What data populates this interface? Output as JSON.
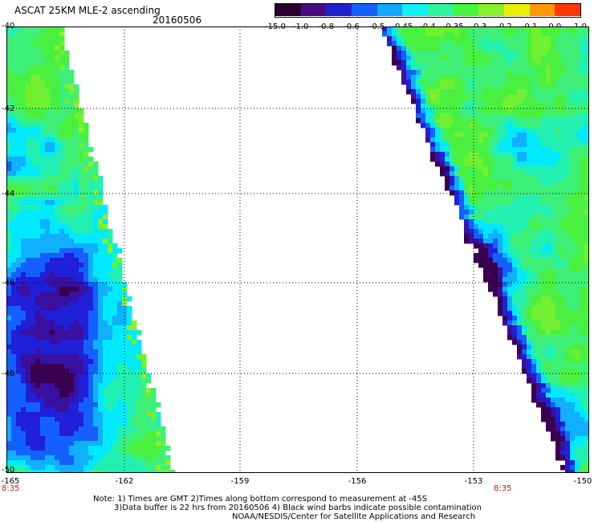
{
  "header": {
    "title": "ASCAT 25KM MLE-2 ascending",
    "date": "20160506"
  },
  "colorbar": {
    "labels": [
      "-15.0",
      "-1.0",
      "-0.8",
      "-0.6",
      "-0.5",
      "-0.45",
      "-0.4",
      "-0.35",
      "-0.3",
      "-0.2",
      "-0.1",
      "0.0",
      "1.0"
    ],
    "colors": [
      "#2a0030",
      "#4a0a80",
      "#2020d0",
      "#1460ff",
      "#12a8ff",
      "#0ff0f0",
      "#2ef5a0",
      "#44f540",
      "#88f028",
      "#e8f000",
      "#ff9800",
      "#ff3800"
    ]
  },
  "axes": {
    "lat_labels": [
      "-40",
      "-42",
      "-44",
      "-46",
      "-48",
      "-50"
    ],
    "lon_labels": [
      "-165",
      "-162",
      "-159",
      "-156",
      "-153",
      "-150"
    ],
    "lat_range": [
      -50,
      -40
    ],
    "lon_range": [
      -165,
      -150
    ]
  },
  "times": {
    "left": "8:35",
    "right": "8:35"
  },
  "notes": {
    "line1": "Note: 1) Times are GMT 2)Times along bottom correspond to measurement at -45S",
    "line2": "3)Data buffer is 22 hrs from 20160506 4) Black wind barbs indicate possible contamination",
    "line3": "NOAA/NESDIS/Center for Satellite Applications and Research"
  }
}
